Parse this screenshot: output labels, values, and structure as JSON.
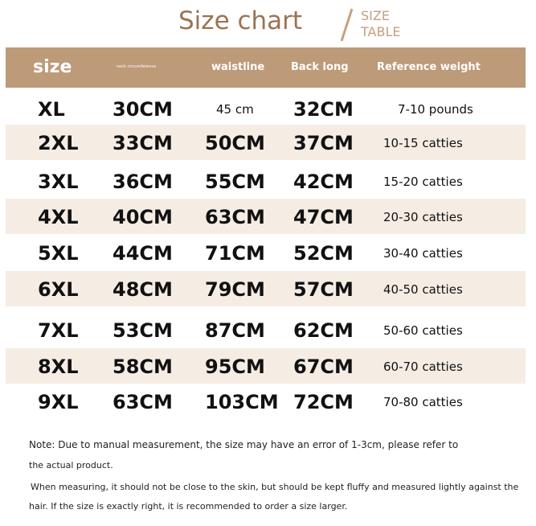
{
  "title": "Size chart",
  "subtitle": [
    "SIZE",
    "TABLE"
  ],
  "colors": {
    "header": "#bd9a78",
    "stripe": "#f5ede4",
    "title": "#9b7452"
  },
  "headers": [
    "size",
    "neck circumference",
    "waistline",
    "Back long",
    "Reference weight"
  ],
  "rows": [
    [
      "XL",
      "30CM",
      "45 cm",
      "32CM",
      "7-10 pounds"
    ],
    [
      "2XL",
      "33CM",
      "50CM",
      "37CM",
      "10-15 catties"
    ],
    [
      "3XL",
      "36CM",
      "55CM",
      "42CM",
      "15-20 catties"
    ],
    [
      "4XL",
      "40CM",
      "63CM",
      "47CM",
      "20-30 catties"
    ],
    [
      "5XL",
      "44CM",
      "71CM",
      "52CM",
      "30-40 catties"
    ],
    [
      "6XL",
      "48CM",
      "79CM",
      "57CM",
      "40-50 catties"
    ],
    [
      "7XL",
      "53CM",
      "87CM",
      "62CM",
      "50-60 catties"
    ],
    [
      "8XL",
      "58CM",
      "95CM",
      "67CM",
      "60-70 catties"
    ],
    [
      "9XL",
      "63CM",
      "103CM",
      "72CM",
      "70-80 catties"
    ]
  ],
  "notes": [
    "Note: Due to manual measurement, the size may have an error of 1-3cm, please refer to",
    "the actual product.",
    "When measuring, it should not be close to the skin, but should be kept fluffy and measured lightly against the",
    "hair. If the size is exactly right, it is recommended to order a size larger."
  ]
}
